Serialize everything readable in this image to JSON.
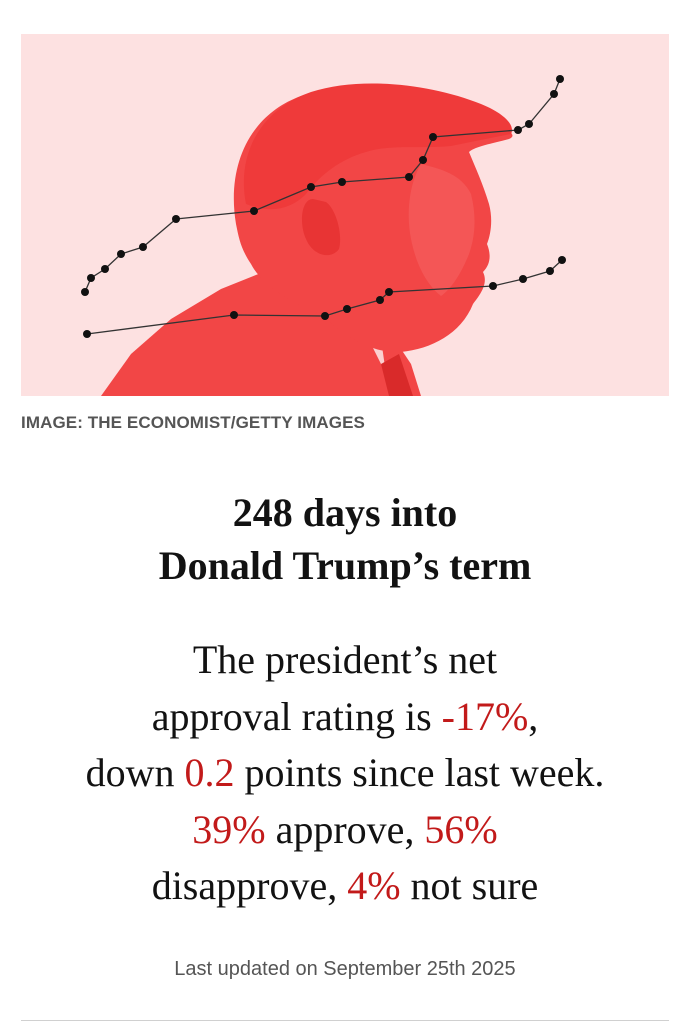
{
  "hero": {
    "image_name": "trump-profile-with-poll-lines",
    "tint_color": "#f24646",
    "background_color": "#fde1e1",
    "credit": "IMAGE: THE ECONOMIST/GETTY IMAGES"
  },
  "headline": {
    "line1": "248 days into",
    "line2": "Donald Trump’s term"
  },
  "summary": {
    "l1": "The president’s net",
    "l2_pre": "approval rating is ",
    "net_approval": "-17%",
    "l2_post": ",",
    "l3_pre": "down ",
    "change": "0.2",
    "l3_post": " points since last week.",
    "approve": "39%",
    "l4_mid": " approve, ",
    "disapprove": "56%",
    "l5_post": "disapprove, ",
    "not_sure": "4%",
    "l5_end": " not sure"
  },
  "highlight_color": "#c21a1a",
  "updated": "Last updated on September 25th 2025"
}
